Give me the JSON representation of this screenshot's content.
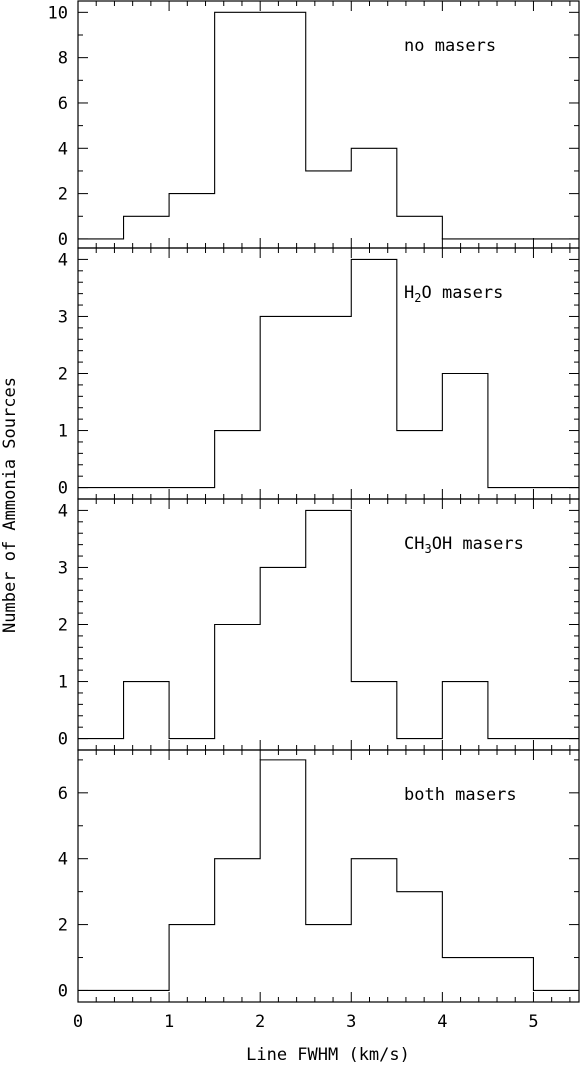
{
  "chart_data": {
    "type": "histogram",
    "xlabel": "Line FWHM (km/s)",
    "ylabel": "Number of Ammonia Sources",
    "xlim": [
      0,
      5.5
    ],
    "x_ticks": [
      0,
      1,
      2,
      3,
      4,
      5
    ],
    "bin_edges": [
      0,
      0.5,
      1,
      1.5,
      2,
      2.5,
      3,
      3.5,
      4,
      4.5,
      5,
      5.5
    ],
    "panels": [
      {
        "label_parts": [
          {
            "text": "no masers"
          }
        ],
        "values": [
          0,
          1,
          2,
          10,
          10,
          3,
          4,
          1,
          0,
          0,
          0
        ],
        "ylim": [
          -0.4,
          10.5
        ],
        "y_ticks": [
          0,
          2,
          4,
          6,
          8,
          10
        ],
        "y_minor_step": 1
      },
      {
        "label_parts": [
          {
            "text": "H"
          },
          {
            "text": "2",
            "sub": true
          },
          {
            "text": "O masers"
          }
        ],
        "values": [
          0,
          0,
          0,
          1,
          3,
          3,
          4,
          1,
          2,
          0,
          0
        ],
        "ylim": [
          -0.2,
          4.2
        ],
        "y_ticks": [
          0,
          1,
          2,
          3,
          4
        ],
        "y_minor_step": 0.2
      },
      {
        "label_parts": [
          {
            "text": "CH"
          },
          {
            "text": "3",
            "sub": true
          },
          {
            "text": "OH masers"
          }
        ],
        "values": [
          0,
          1,
          0,
          2,
          3,
          4,
          1,
          0,
          1,
          0,
          0
        ],
        "ylim": [
          -0.2,
          4.2
        ],
        "y_ticks": [
          0,
          1,
          2,
          3,
          4
        ],
        "y_minor_step": 0.2
      },
      {
        "label_parts": [
          {
            "text": "both masers"
          }
        ],
        "values": [
          0,
          0,
          2,
          4,
          7,
          2,
          4,
          3,
          1,
          1,
          0
        ],
        "ylim": [
          -0.35,
          7.3
        ],
        "y_ticks": [
          0,
          2,
          4,
          6
        ],
        "y_minor_step": 1
      }
    ]
  }
}
